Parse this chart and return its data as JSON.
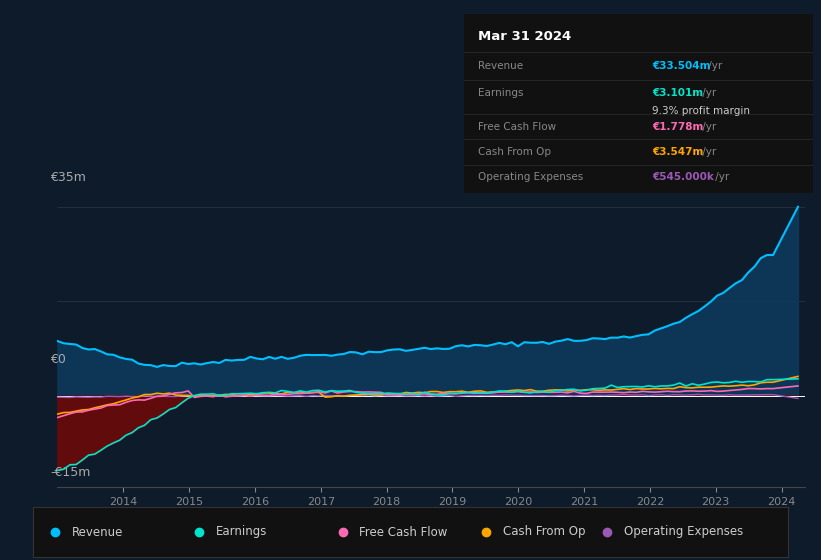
{
  "bg_color": "#0d1b2a",
  "chart_bg": "#0d1b2a",
  "ylabel_top": "€35m",
  "ylabel_mid": "€0",
  "ylabel_bot": "-€15m",
  "revenue_color": "#00bfff",
  "earnings_color": "#00e5cc",
  "fcf_color": "#ff69b4",
  "cashop_color": "#ffa500",
  "opex_color": "#9b59b6",
  "revenue_fill": "#0d3a5c",
  "earnings_fill_neg": "#6b0a0a",
  "info_box": {
    "date": "Mar 31 2024",
    "revenue_val": "€33.504m",
    "revenue_color": "#00bfff",
    "earnings_val": "€3.101m",
    "earnings_color": "#00e5cc",
    "fcf_val": "€1.778m",
    "fcf_color": "#ff69b4",
    "cashop_val": "€3.547m",
    "cashop_color": "#ffa500",
    "opex_val": "€545.000k",
    "opex_color": "#9b59b6"
  },
  "legend": [
    {
      "label": "Revenue",
      "color": "#00bfff"
    },
    {
      "label": "Earnings",
      "color": "#00e5cc"
    },
    {
      "label": "Free Cash Flow",
      "color": "#ff69b4"
    },
    {
      "label": "Cash From Op",
      "color": "#ffa500"
    },
    {
      "label": "Operating Expenses",
      "color": "#9b59b6"
    }
  ]
}
